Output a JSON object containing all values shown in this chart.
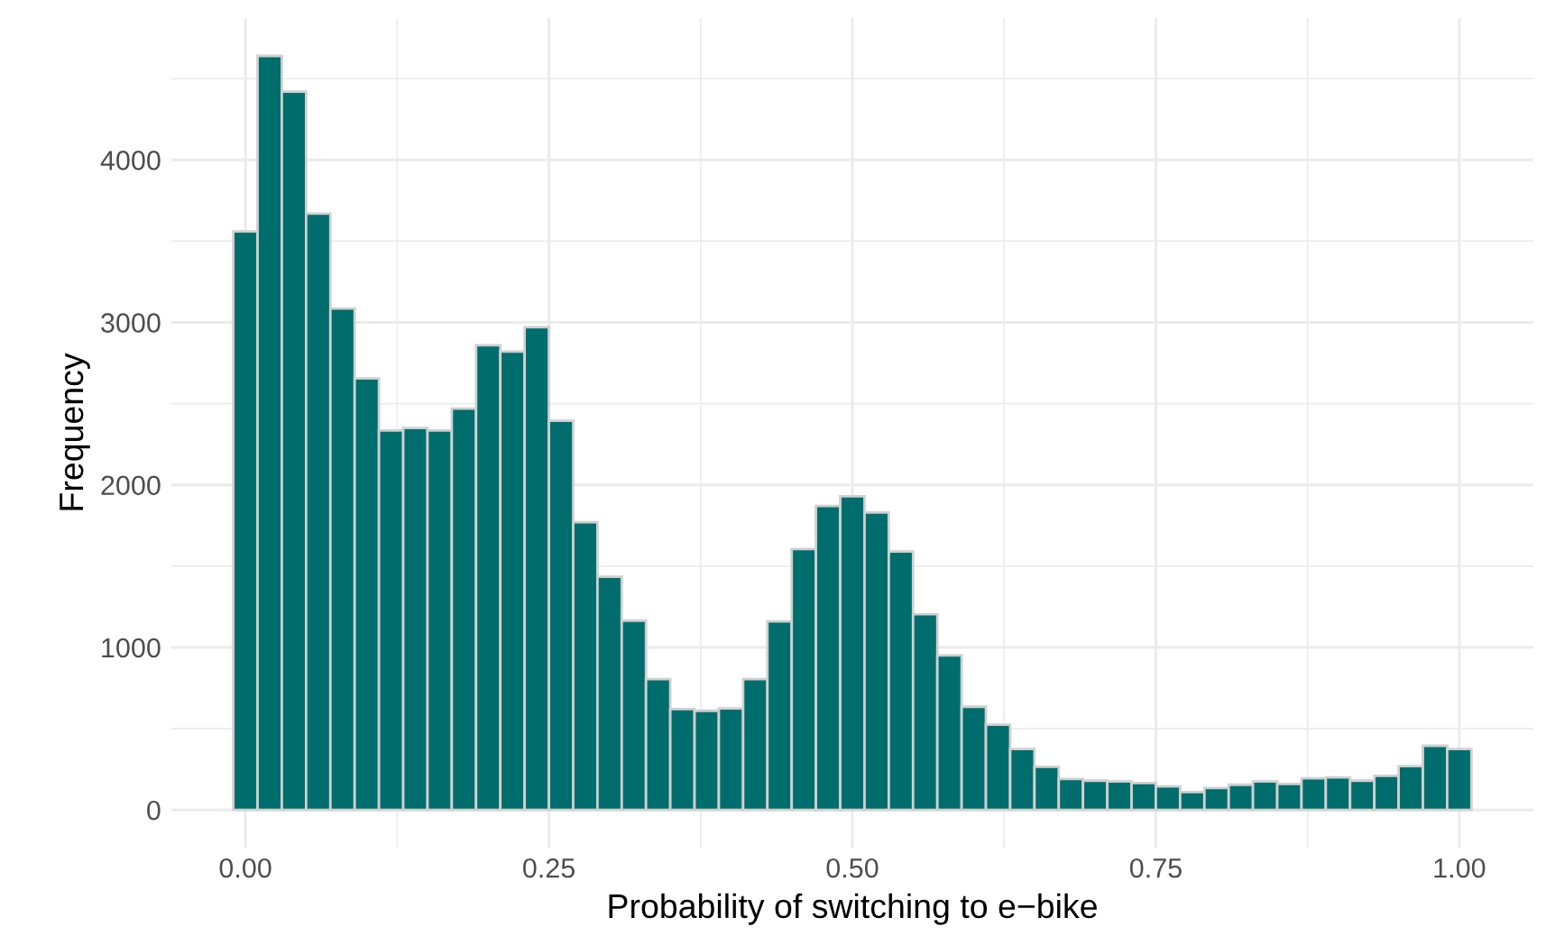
{
  "chart_data": {
    "type": "histogram",
    "xlabel": "Probability of switching to e−bike",
    "ylabel": "Frequency",
    "bins": [
      -0.01,
      0.01,
      0.03,
      0.05,
      0.07,
      0.09,
      0.11,
      0.13,
      0.15,
      0.17,
      0.19,
      0.21,
      0.23,
      0.25,
      0.27,
      0.29,
      0.31,
      0.33,
      0.35,
      0.37,
      0.39,
      0.41,
      0.43,
      0.45,
      0.47,
      0.49,
      0.51,
      0.53,
      0.55,
      0.57,
      0.59,
      0.61,
      0.63,
      0.65,
      0.67,
      0.69,
      0.71,
      0.73,
      0.75,
      0.77,
      0.79,
      0.81,
      0.83,
      0.85,
      0.87,
      0.89,
      0.91,
      0.93,
      0.95,
      0.97,
      0.99,
      1.01
    ],
    "values": [
      3560,
      4640,
      4420,
      3670,
      3085,
      2655,
      2335,
      2350,
      2335,
      2470,
      2860,
      2820,
      2970,
      2395,
      1770,
      1435,
      1165,
      805,
      620,
      610,
      625,
      805,
      1160,
      1605,
      1870,
      1930,
      1830,
      1590,
      1205,
      950,
      635,
      525,
      375,
      265,
      190,
      180,
      175,
      165,
      145,
      110,
      135,
      155,
      175,
      160,
      195,
      200,
      180,
      210,
      270,
      395,
      375
    ],
    "color": "#006d6d",
    "xlim": [
      -0.061,
      1.061
    ],
    "ylim": [
      -232,
      4873
    ],
    "xticks": [
      {
        "value": 0,
        "label": "0.00"
      },
      {
        "value": 0.25,
        "label": "0.25"
      },
      {
        "value": 0.5,
        "label": "0.50"
      },
      {
        "value": 0.75,
        "label": "0.75"
      },
      {
        "value": 1,
        "label": "1.00"
      }
    ],
    "yticks": [
      0,
      1000,
      2000,
      3000,
      4000
    ],
    "grid": true,
    "legend": false
  }
}
